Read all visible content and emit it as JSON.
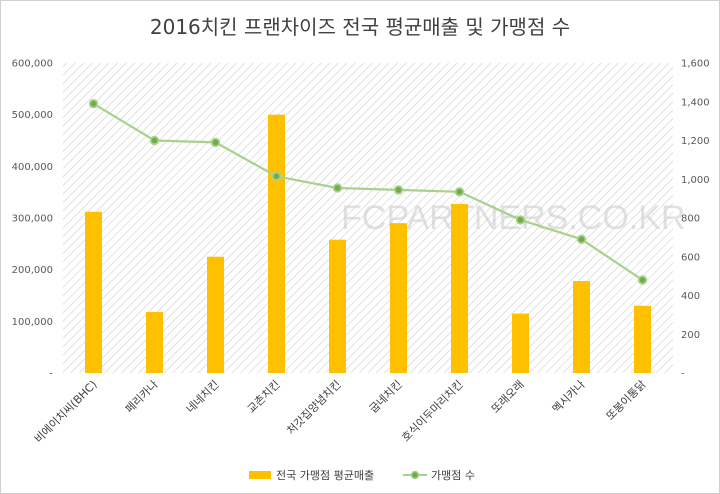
{
  "colors": {
    "bar": "#FFC000",
    "line": "#A9D18E",
    "marker_fill": "#70AD47",
    "hatch": "#c9c9c9",
    "axis_text": "#595959"
  },
  "watermark": "FCPARTNERS.CO.KR",
  "chart_data": {
    "type": "bar",
    "title": "2016치킨 프랜차이즈 전국 평균매출 및 가맹점 수",
    "categories": [
      "비에이치씨(BHC)",
      "페리카나",
      "네네치킨",
      "교촌치킨",
      "처갓집양념치킨",
      "굽네치킨",
      "호식이두마리치킨",
      "또래오래",
      "멕시카나",
      "또봉이통닭"
    ],
    "series": [
      {
        "name": "전국 가맹점 평균매출",
        "type": "bar",
        "axis": "left",
        "values": [
          312000,
          118000,
          225000,
          500000,
          258000,
          290000,
          327000,
          115000,
          178000,
          130000
        ]
      },
      {
        "name": "가맹점 수",
        "type": "line",
        "axis": "right",
        "values": [
          1390,
          1200,
          1190,
          1015,
          955,
          945,
          935,
          790,
          690,
          480
        ]
      }
    ],
    "y_left": {
      "min": 0,
      "max": 600000,
      "ticks": [
        "-",
        "100,000",
        "200,000",
        "300,000",
        "400,000",
        "500,000",
        "600,000"
      ]
    },
    "y_right": {
      "min": 0,
      "max": 1600,
      "ticks": [
        "-",
        "200",
        "400",
        "600",
        "800",
        "1,000",
        "1,200",
        "1,400",
        "1,600"
      ]
    },
    "legend_position": "bottom",
    "grid": false
  }
}
